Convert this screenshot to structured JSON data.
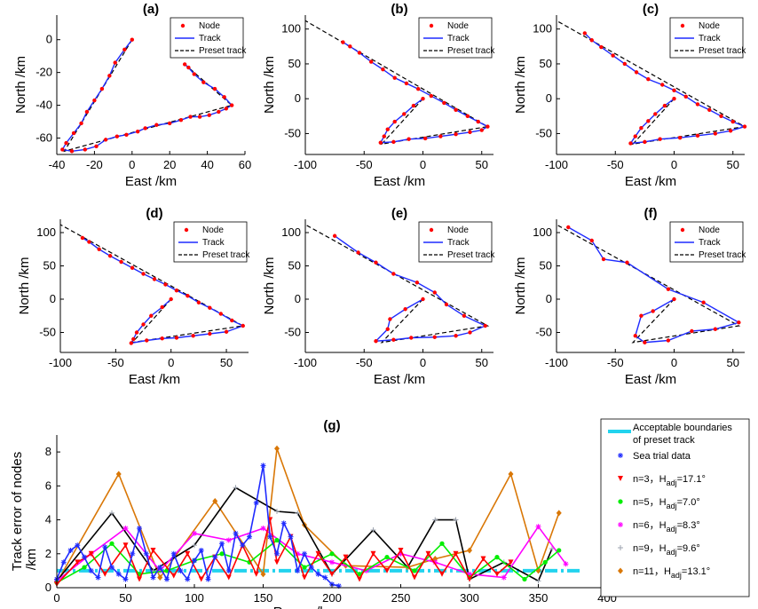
{
  "chart_data": [
    {
      "id": "a",
      "type": "line",
      "title": "(a)",
      "xlabel": "East /km",
      "ylabel": "North /km",
      "xlim": [
        -40,
        60
      ],
      "ylim": [
        -70,
        15
      ],
      "xticks": [
        -40,
        -20,
        0,
        20,
        40,
        60
      ],
      "yticks": [
        -60,
        -40,
        -20,
        0
      ],
      "legend": [
        "Node",
        "Track",
        "Preset track"
      ],
      "legend_position": "top-right",
      "preset": [
        [
          0,
          0
        ],
        [
          -36,
          -68
        ],
        [
          53,
          -40
        ],
        [
          28,
          -15
        ]
      ],
      "track": [
        [
          0,
          0
        ],
        [
          -4,
          -6
        ],
        [
          -9,
          -14
        ],
        [
          -12,
          -22
        ],
        [
          -16,
          -30
        ],
        [
          -20,
          -37
        ],
        [
          -24,
          -44
        ],
        [
          -27,
          -51
        ],
        [
          -31,
          -57
        ],
        [
          -35,
          -63
        ],
        [
          -37,
          -67
        ],
        [
          -32,
          -68
        ],
        [
          -25,
          -67
        ],
        [
          -19,
          -65
        ],
        [
          -14,
          -61
        ],
        [
          -8,
          -59
        ],
        [
          -3,
          -58
        ],
        [
          3,
          -56
        ],
        [
          7,
          -54
        ],
        [
          13,
          -52
        ],
        [
          20,
          -51
        ],
        [
          26,
          -49
        ],
        [
          31,
          -47
        ],
        [
          36,
          -47
        ],
        [
          41,
          -46
        ],
        [
          46,
          -44
        ],
        [
          50,
          -42
        ],
        [
          53,
          -40
        ],
        [
          49,
          -35
        ],
        [
          44,
          -30
        ],
        [
          38,
          -26
        ],
        [
          33,
          -21
        ],
        [
          30,
          -17
        ],
        [
          28,
          -15
        ]
      ]
    },
    {
      "id": "b",
      "type": "line",
      "title": "(b)",
      "xlabel": "East /km",
      "ylabel": "North /km",
      "xlim": [
        -100,
        60
      ],
      "ylim": [
        -80,
        120
      ],
      "xticks": [
        -100,
        -50,
        0,
        50
      ],
      "yticks": [
        -50,
        0,
        50,
        100
      ],
      "legend": [
        "Node",
        "Track",
        "Preset track"
      ],
      "legend_position": "top-right",
      "preset": [
        [
          0,
          0
        ],
        [
          -35,
          -65
        ],
        [
          55,
          -40
        ],
        [
          -100,
          112
        ]
      ],
      "track": [
        [
          0,
          0
        ],
        [
          -8,
          -10
        ],
        [
          -16,
          -22
        ],
        [
          -24,
          -33
        ],
        [
          -30,
          -44
        ],
        [
          -33,
          -54
        ],
        [
          -36,
          -63
        ],
        [
          -25,
          -62
        ],
        [
          -12,
          -58
        ],
        [
          2,
          -57
        ],
        [
          15,
          -54
        ],
        [
          28,
          -51
        ],
        [
          40,
          -48
        ],
        [
          50,
          -45
        ],
        [
          55,
          -40
        ],
        [
          47,
          -33
        ],
        [
          38,
          -25
        ],
        [
          28,
          -16
        ],
        [
          18,
          -6
        ],
        [
          7,
          4
        ],
        [
          -4,
          14
        ],
        [
          -14,
          22
        ],
        [
          -24,
          30
        ],
        [
          -34,
          42
        ],
        [
          -44,
          53
        ],
        [
          -54,
          66
        ],
        [
          -62,
          75
        ],
        [
          -68,
          81
        ]
      ]
    },
    {
      "id": "c",
      "type": "line",
      "title": "(c)",
      "xlabel": "East /km",
      "ylabel": "North /km",
      "xlim": [
        -100,
        60
      ],
      "ylim": [
        -80,
        120
      ],
      "xticks": [
        -100,
        -50,
        0,
        50
      ],
      "yticks": [
        -50,
        0,
        50,
        100
      ],
      "legend": [
        "Node",
        "Track",
        "Preset track"
      ],
      "legend_position": "top-right",
      "preset": [
        [
          0,
          0
        ],
        [
          -35,
          -65
        ],
        [
          60,
          -40
        ],
        [
          -100,
          112
        ]
      ],
      "track": [
        [
          0,
          0
        ],
        [
          -8,
          -10
        ],
        [
          -16,
          -22
        ],
        [
          -22,
          -32
        ],
        [
          -28,
          -42
        ],
        [
          -33,
          -54
        ],
        [
          -37,
          -64
        ],
        [
          -25,
          -62
        ],
        [
          -12,
          -58
        ],
        [
          5,
          -56
        ],
        [
          20,
          -53
        ],
        [
          35,
          -50
        ],
        [
          48,
          -46
        ],
        [
          60,
          -40
        ],
        [
          50,
          -33
        ],
        [
          40,
          -25
        ],
        [
          30,
          -16
        ],
        [
          20,
          -8
        ],
        [
          10,
          3
        ],
        [
          0,
          12
        ],
        [
          -10,
          20
        ],
        [
          -22,
          28
        ],
        [
          -32,
          38
        ],
        [
          -42,
          50
        ],
        [
          -52,
          62
        ],
        [
          -62,
          74
        ],
        [
          -70,
          84
        ],
        [
          -76,
          94
        ]
      ]
    },
    {
      "id": "d",
      "type": "line",
      "title": "(d)",
      "xlabel": "East /km",
      "ylabel": "North /km",
      "xlim": [
        -100,
        70
      ],
      "ylim": [
        -80,
        120
      ],
      "xticks": [
        -100,
        -50,
        0,
        50
      ],
      "yticks": [
        -50,
        0,
        50,
        100
      ],
      "legend": [
        "Node",
        "Track",
        "Preset track"
      ],
      "legend_position": "top-right",
      "preset": [
        [
          0,
          0
        ],
        [
          -35,
          -65
        ],
        [
          65,
          -40
        ],
        [
          -100,
          112
        ]
      ],
      "track": [
        [
          0,
          0
        ],
        [
          -8,
          -12
        ],
        [
          -18,
          -25
        ],
        [
          -25,
          -38
        ],
        [
          -31,
          -50
        ],
        [
          -34,
          -60
        ],
        [
          -36,
          -66
        ],
        [
          -22,
          -62
        ],
        [
          -8,
          -59
        ],
        [
          5,
          -58
        ],
        [
          20,
          -55
        ],
        [
          35,
          -52
        ],
        [
          50,
          -49
        ],
        [
          65,
          -40
        ],
        [
          55,
          -32
        ],
        [
          45,
          -22
        ],
        [
          35,
          -13
        ],
        [
          25,
          -5
        ],
        [
          15,
          5
        ],
        [
          5,
          13
        ],
        [
          -5,
          22
        ],
        [
          -15,
          30
        ],
        [
          -25,
          38
        ],
        [
          -35,
          47
        ],
        [
          -45,
          56
        ],
        [
          -55,
          65
        ],
        [
          -65,
          75
        ],
        [
          -74,
          86
        ],
        [
          -80,
          92
        ]
      ]
    },
    {
      "id": "e",
      "type": "line",
      "title": "(e)",
      "xlabel": "East /km",
      "ylabel": "North /km",
      "xlim": [
        -100,
        60
      ],
      "ylim": [
        -80,
        120
      ],
      "xticks": [
        -100,
        -50,
        0,
        50
      ],
      "yticks": [
        -50,
        0,
        50,
        100
      ],
      "legend": [
        "Node",
        "Track",
        "Preset track"
      ],
      "legend_position": "top-right",
      "preset": [
        [
          0,
          0
        ],
        [
          -35,
          -65
        ],
        [
          55,
          -40
        ],
        [
          -100,
          112
        ]
      ],
      "track": [
        [
          0,
          0
        ],
        [
          -15,
          -15
        ],
        [
          -28,
          -30
        ],
        [
          -30,
          -45
        ],
        [
          -40,
          -63
        ],
        [
          -25,
          -61
        ],
        [
          -10,
          -58
        ],
        [
          10,
          -57
        ],
        [
          28,
          -55
        ],
        [
          40,
          -50
        ],
        [
          53,
          -40
        ],
        [
          35,
          -25
        ],
        [
          20,
          -8
        ],
        [
          10,
          10
        ],
        [
          -5,
          25
        ],
        [
          -25,
          38
        ],
        [
          -40,
          55
        ],
        [
          -55,
          70
        ],
        [
          -75,
          95
        ]
      ]
    },
    {
      "id": "f",
      "type": "line",
      "title": "(f)",
      "xlabel": "East /km",
      "ylabel": "North /km",
      "xlim": [
        -100,
        60
      ],
      "ylim": [
        -80,
        120
      ],
      "xticks": [
        -100,
        -50,
        0,
        50
      ],
      "yticks": [
        -50,
        0,
        50,
        100
      ],
      "legend": [
        "Node",
        "Track",
        "Preset track"
      ],
      "legend_position": "top-right",
      "preset": [
        [
          0,
          0
        ],
        [
          -35,
          -65
        ],
        [
          55,
          -40
        ],
        [
          -100,
          112
        ]
      ],
      "track": [
        [
          0,
          0
        ],
        [
          -18,
          -18
        ],
        [
          -28,
          -25
        ],
        [
          -33,
          -55
        ],
        [
          -25,
          -65
        ],
        [
          -5,
          -62
        ],
        [
          15,
          -48
        ],
        [
          35,
          -45
        ],
        [
          55,
          -35
        ],
        [
          25,
          -5
        ],
        [
          -5,
          15
        ],
        [
          -40,
          55
        ],
        [
          -60,
          60
        ],
        [
          -70,
          88
        ],
        [
          -90,
          108
        ]
      ]
    },
    {
      "id": "g",
      "type": "line",
      "title": "(g)",
      "xlabel": "Range /km",
      "ylabel": "Track error of nodes\n/km",
      "xlim": [
        0,
        400
      ],
      "ylim": [
        0,
        9
      ],
      "xticks": [
        0,
        50,
        100,
        150,
        200,
        250,
        300,
        350,
        400
      ],
      "yticks": [
        0,
        2,
        4,
        6,
        8
      ],
      "legend_position": "right",
      "boundary": {
        "label": "Acceptable boundaries",
        "label2": "of preset track",
        "value": 1,
        "color": "#22d3ee"
      },
      "series": [
        {
          "name": "Sea trial data",
          "color": "#1f2bff",
          "marker": "star",
          "x": [
            0,
            5,
            10,
            15,
            20,
            25,
            30,
            35,
            40,
            45,
            50,
            55,
            60,
            65,
            70,
            75,
            80,
            85,
            90,
            95,
            100,
            105,
            110,
            115,
            120,
            125,
            130,
            135,
            140,
            145,
            150,
            155,
            160,
            165,
            170,
            175,
            180,
            185,
            190,
            195,
            200,
            205
          ],
          "y": [
            0.5,
            1.5,
            2.2,
            2.5,
            1.8,
            1.0,
            0.6,
            2.4,
            1.2,
            0.8,
            0.5,
            2.0,
            3.5,
            2.0,
            0.6,
            1.2,
            0.5,
            2.0,
            1.0,
            0.5,
            1.6,
            2.2,
            0.5,
            1.8,
            2.6,
            1.0,
            3.2,
            2.5,
            3.0,
            5.0,
            7.2,
            3.0,
            2.0,
            3.8,
            3.0,
            1.0,
            2.0,
            1.2,
            0.8,
            0.6,
            0.2,
            0.1
          ]
        },
        {
          "name": "n=3，H",
          "sub": "adj",
          "suffix": "=17.1°",
          "color": "#ff0000",
          "marker": "tri",
          "x": [
            0,
            15,
            25,
            35,
            50,
            60,
            70,
            85,
            95,
            105,
            115,
            125,
            135,
            145,
            155,
            160,
            170,
            180,
            190,
            200,
            210,
            220,
            230,
            240,
            250,
            260,
            270,
            280,
            290,
            300,
            310,
            320,
            330
          ],
          "y": [
            0.2,
            1.5,
            2.0,
            0.8,
            2.5,
            0.5,
            2.2,
            0.7,
            2.0,
            0.5,
            1.8,
            0.6,
            2.5,
            0.8,
            4.0,
            1.5,
            3.0,
            0.6,
            2.0,
            0.8,
            1.8,
            0.5,
            2.0,
            1.0,
            2.2,
            0.6,
            2.0,
            0.8,
            2.0,
            0.5,
            1.7,
            0.8,
            1.5
          ]
        },
        {
          "name": "n=5，H",
          "sub": "adj",
          "suffix": "=7.0°",
          "color": "#00ee00",
          "marker": "dot",
          "x": [
            0,
            20,
            40,
            60,
            80,
            100,
            120,
            140,
            160,
            180,
            200,
            220,
            240,
            260,
            280,
            300,
            320,
            340,
            355,
            365
          ],
          "y": [
            0.3,
            1.2,
            2.6,
            0.8,
            1.0,
            1.6,
            2.0,
            1.5,
            2.8,
            1.2,
            2.0,
            0.8,
            1.8,
            1.0,
            2.6,
            0.6,
            1.8,
            0.5,
            1.5,
            2.2
          ]
        },
        {
          "name": "n=6，H",
          "sub": "adj",
          "suffix": "=8.3°",
          "color": "#ff00ff",
          "marker": "star",
          "x": [
            0,
            25,
            50,
            75,
            100,
            125,
            150,
            175,
            200,
            225,
            250,
            275,
            300,
            325,
            350,
            370
          ],
          "y": [
            0.4,
            2.0,
            3.5,
            1.0,
            3.2,
            2.8,
            3.5,
            2.0,
            1.5,
            1.0,
            2.0,
            1.5,
            0.8,
            0.6,
            3.6,
            1.4
          ]
        },
        {
          "name": "n=9，H",
          "sub": "adj",
          "suffix": "=9.6°",
          "color": "#000000",
          "marker": "plus",
          "x": [
            0,
            40,
            70,
            100,
            130,
            160,
            175,
            200,
            230,
            255,
            275,
            290,
            300,
            325,
            350,
            360
          ],
          "y": [
            0.4,
            4.4,
            1.0,
            2.5,
            5.9,
            4.5,
            4.4,
            0.8,
            3.4,
            1.2,
            4.0,
            4.0,
            0.5,
            1.5,
            0.4,
            2.3
          ]
        },
        {
          "name": "n=11，H",
          "sub": "adj",
          "suffix": "=13.1°",
          "color": "#d97706",
          "marker": "diamond",
          "x": [
            0,
            45,
            75,
            115,
            150,
            160,
            180,
            210,
            255,
            275,
            300,
            330,
            350,
            365
          ],
          "y": [
            0.3,
            6.7,
            0.6,
            5.1,
            0.8,
            8.2,
            3.7,
            1.3,
            1.2,
            1.7,
            2.2,
            6.7,
            1.0,
            4.4
          ]
        }
      ]
    }
  ]
}
